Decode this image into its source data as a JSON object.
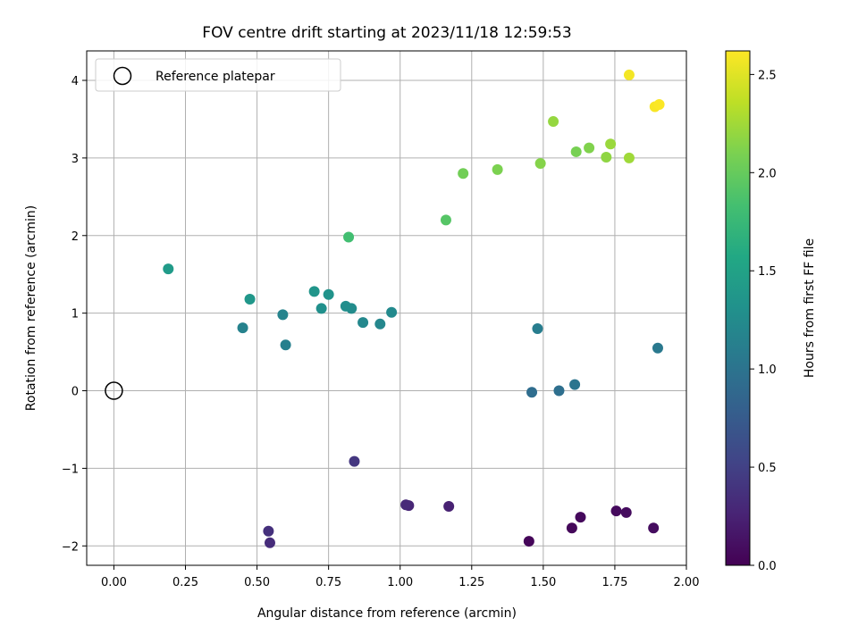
{
  "chart_data": {
    "type": "scatter",
    "title": "FOV centre drift starting at 2023/11/18 12:59:53",
    "xlabel": "Angular distance from reference (arcmin)",
    "ylabel": "Rotation from reference (arcmin)",
    "xlim": [
      -0.095,
      2.0
    ],
    "ylim": [
      -2.25,
      4.38
    ],
    "xticks": [
      0.0,
      0.25,
      0.5,
      0.75,
      1.0,
      1.25,
      1.5,
      1.75,
      2.0
    ],
    "xtick_labels": [
      "0.00",
      "0.25",
      "0.50",
      "0.75",
      "1.00",
      "1.25",
      "1.50",
      "1.75",
      "2.00"
    ],
    "yticks": [
      -2,
      -1,
      0,
      1,
      2,
      3,
      4
    ],
    "ytick_labels": [
      "−2",
      "−1",
      "0",
      "1",
      "2",
      "3",
      "4"
    ],
    "grid": true,
    "legend": {
      "position": "top-left",
      "entries": [
        "Reference platepar"
      ]
    },
    "reference_point": {
      "x": 0.0,
      "y": 0.0
    },
    "colorbar": {
      "label": "Hours from first FF file",
      "colormap": "viridis",
      "range": [
        0.0,
        2.62
      ],
      "ticks": [
        0.0,
        0.5,
        1.0,
        1.5,
        2.0,
        2.5
      ],
      "tick_labels": [
        "0.0",
        "0.5",
        "1.0",
        "1.5",
        "2.0",
        "2.5"
      ]
    },
    "points": [
      {
        "x": 1.45,
        "y": -1.94,
        "c": 0.04
      },
      {
        "x": 1.6,
        "y": -1.77,
        "c": 0.05
      },
      {
        "x": 1.63,
        "y": -1.63,
        "c": 0.06
      },
      {
        "x": 1.755,
        "y": -1.55,
        "c": 0.07
      },
      {
        "x": 1.79,
        "y": -1.57,
        "c": 0.08
      },
      {
        "x": 1.885,
        "y": -1.77,
        "c": 0.09
      },
      {
        "x": 1.17,
        "y": -1.49,
        "c": 0.25
      },
      {
        "x": 1.03,
        "y": -1.48,
        "c": 0.28
      },
      {
        "x": 1.02,
        "y": -1.47,
        "c": 0.3
      },
      {
        "x": 0.545,
        "y": -1.96,
        "c": 0.33
      },
      {
        "x": 0.54,
        "y": -1.81,
        "c": 0.36
      },
      {
        "x": 0.84,
        "y": -0.91,
        "c": 0.42
      },
      {
        "x": 1.46,
        "y": -0.02,
        "c": 0.93
      },
      {
        "x": 1.555,
        "y": 0.0,
        "c": 0.95
      },
      {
        "x": 1.61,
        "y": 0.08,
        "c": 1.02
      },
      {
        "x": 1.9,
        "y": 0.55,
        "c": 1.06
      },
      {
        "x": 1.48,
        "y": 0.8,
        "c": 1.1
      },
      {
        "x": 0.6,
        "y": 0.59,
        "c": 1.13
      },
      {
        "x": 0.45,
        "y": 0.81,
        "c": 1.15
      },
      {
        "x": 0.59,
        "y": 0.98,
        "c": 1.17
      },
      {
        "x": 0.93,
        "y": 0.86,
        "c": 1.2
      },
      {
        "x": 0.87,
        "y": 0.88,
        "c": 1.22
      },
      {
        "x": 0.97,
        "y": 1.01,
        "c": 1.24
      },
      {
        "x": 0.83,
        "y": 1.06,
        "c": 1.26
      },
      {
        "x": 0.81,
        "y": 1.09,
        "c": 1.28
      },
      {
        "x": 0.725,
        "y": 1.06,
        "c": 1.3
      },
      {
        "x": 0.75,
        "y": 1.24,
        "c": 1.33
      },
      {
        "x": 0.7,
        "y": 1.28,
        "c": 1.36
      },
      {
        "x": 0.475,
        "y": 1.18,
        "c": 1.38
      },
      {
        "x": 0.19,
        "y": 1.57,
        "c": 1.42
      },
      {
        "x": 0.82,
        "y": 1.98,
        "c": 1.82
      },
      {
        "x": 1.16,
        "y": 2.2,
        "c": 1.92
      },
      {
        "x": 1.22,
        "y": 2.8,
        "c": 2.05
      },
      {
        "x": 1.34,
        "y": 2.85,
        "c": 2.1
      },
      {
        "x": 1.49,
        "y": 2.93,
        "c": 2.14
      },
      {
        "x": 1.615,
        "y": 3.08,
        "c": 2.08
      },
      {
        "x": 1.66,
        "y": 3.13,
        "c": 2.12
      },
      {
        "x": 1.72,
        "y": 3.01,
        "c": 2.18
      },
      {
        "x": 1.735,
        "y": 3.18,
        "c": 2.22
      },
      {
        "x": 1.8,
        "y": 3.0,
        "c": 2.24
      },
      {
        "x": 1.535,
        "y": 3.47,
        "c": 2.2
      },
      {
        "x": 1.8,
        "y": 4.07,
        "c": 2.58
      },
      {
        "x": 1.89,
        "y": 3.66,
        "c": 2.6
      },
      {
        "x": 1.905,
        "y": 3.69,
        "c": 2.61
      }
    ]
  }
}
